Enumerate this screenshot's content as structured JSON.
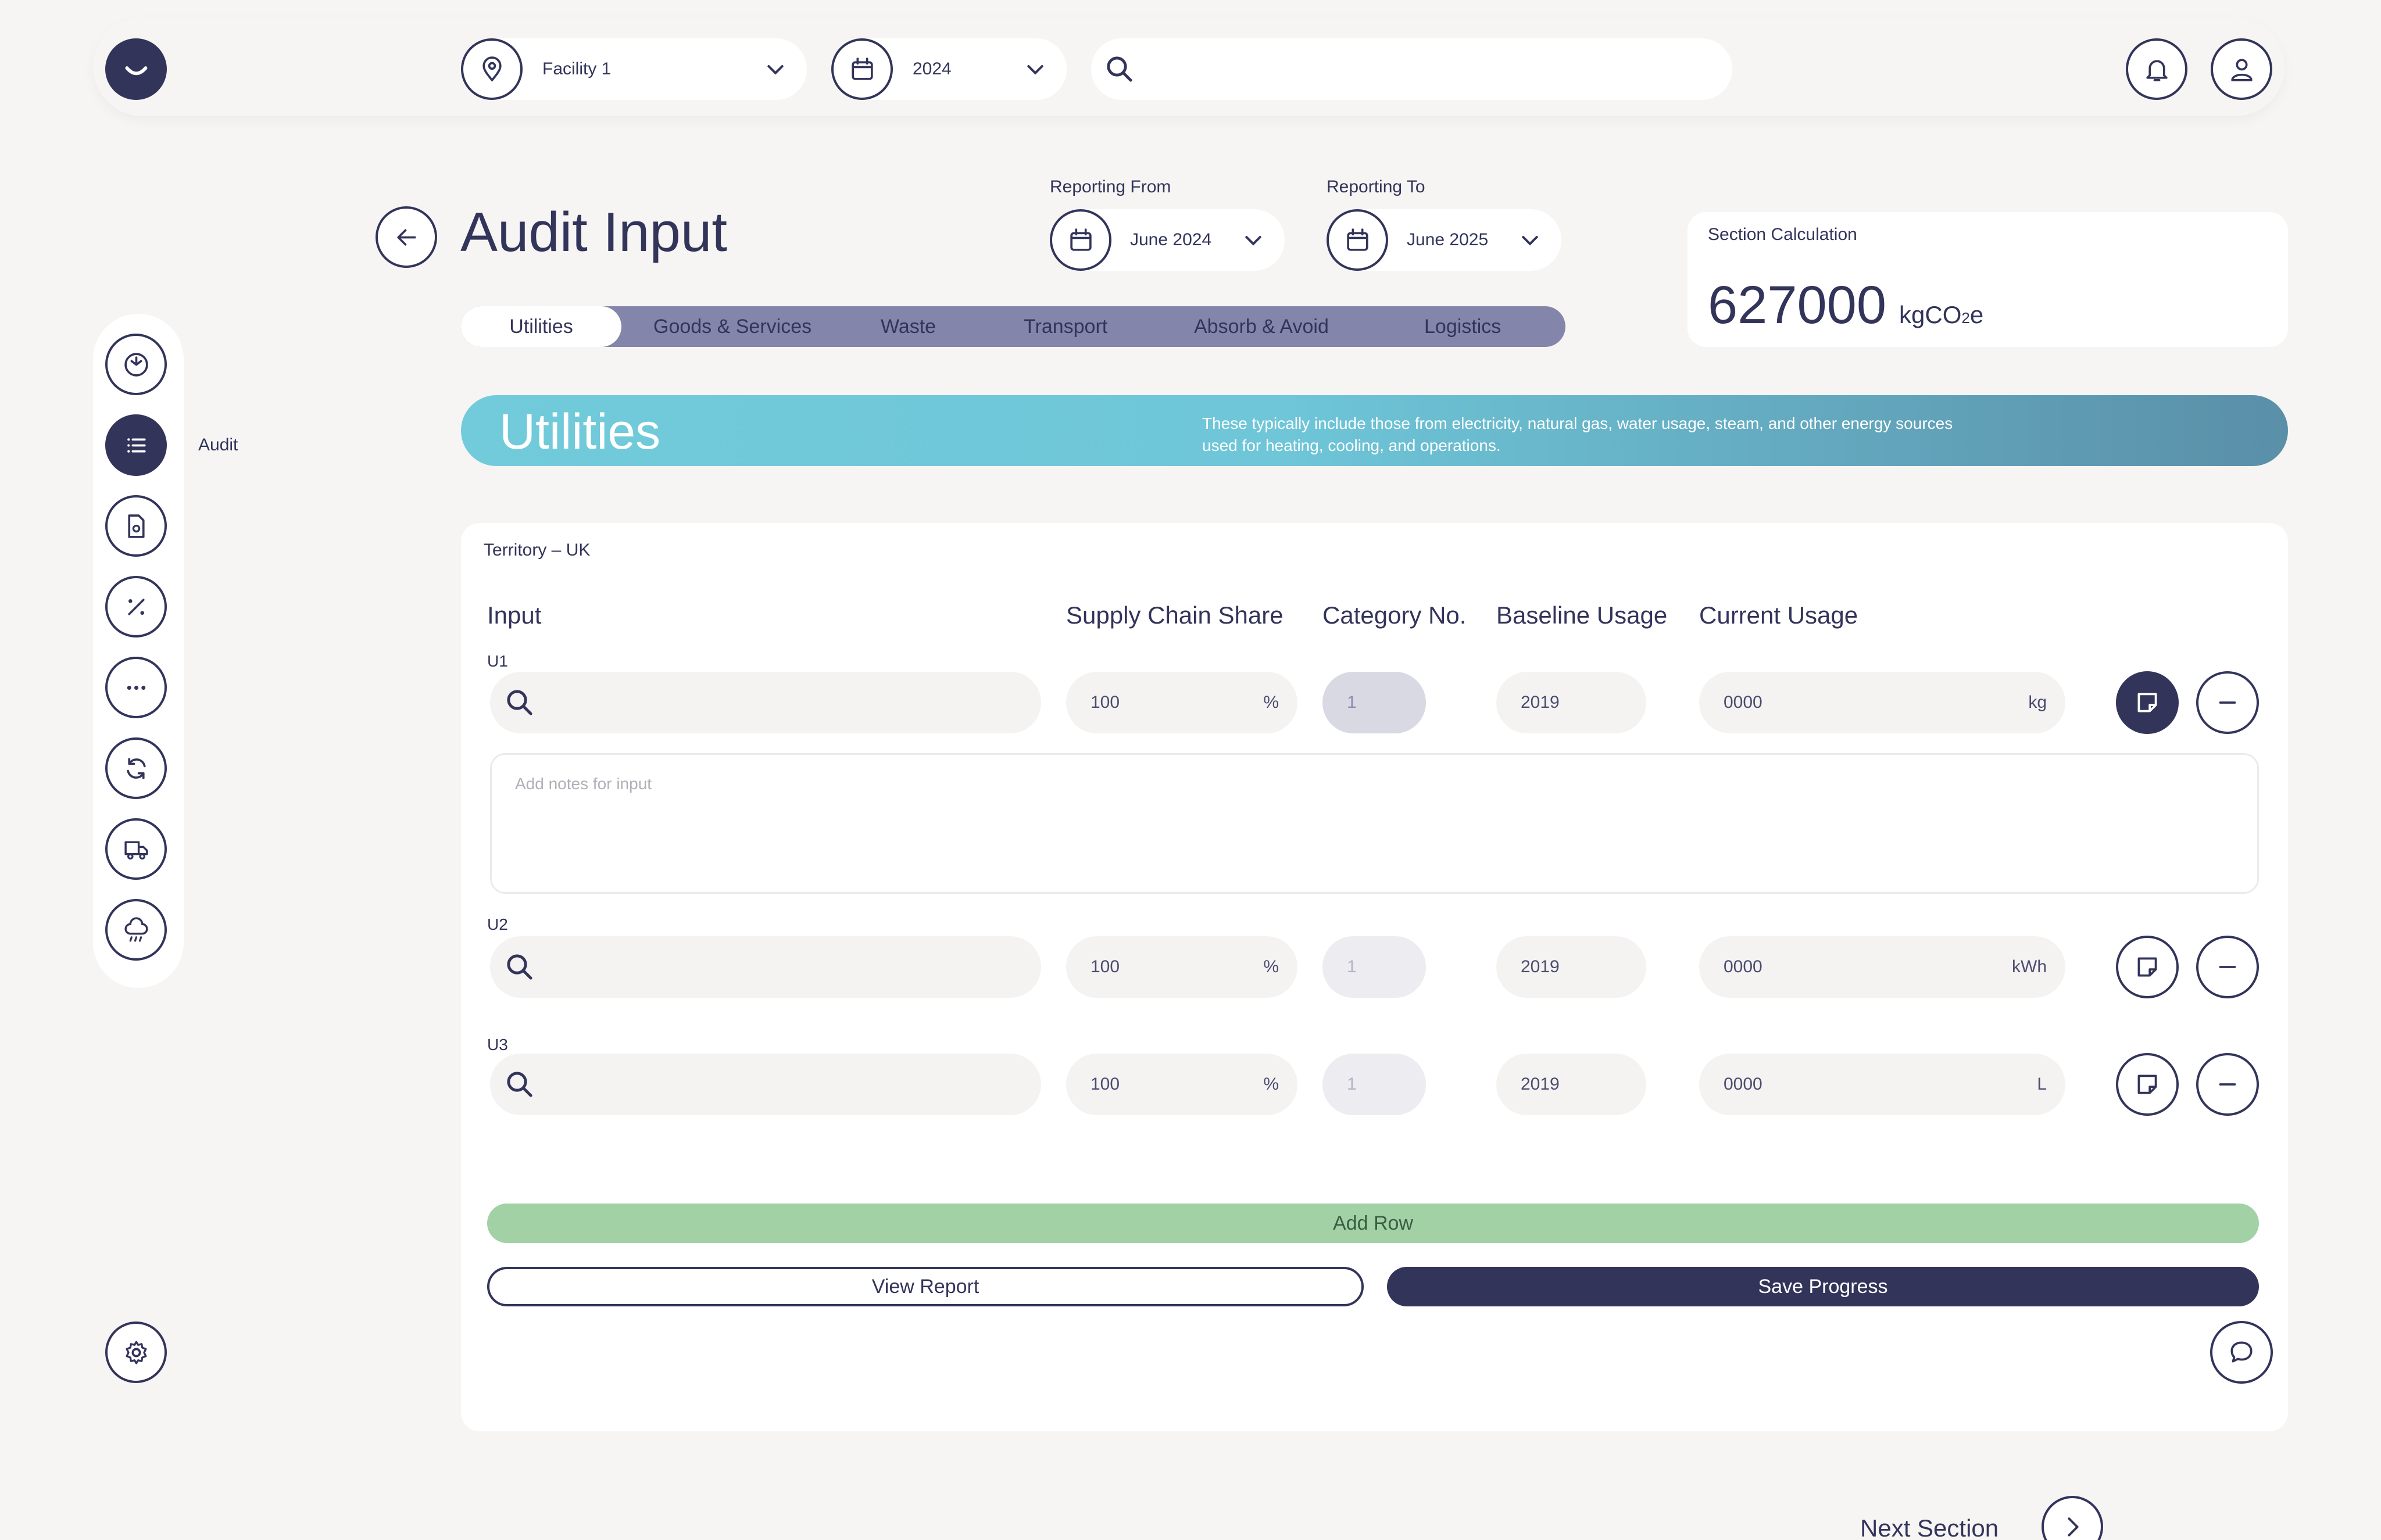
{
  "topbar": {
    "facility_label": "Facility 1",
    "year_label": "2024",
    "search_placeholder": ""
  },
  "page": {
    "title": "Audit Input",
    "reporting_from_label": "Reporting From",
    "reporting_from_value": "June 2024",
    "reporting_to_label": "Reporting To",
    "reporting_to_value": "June 2025"
  },
  "section_calc": {
    "label": "Section Calculation",
    "value": "627000",
    "unit_main": "kgCO",
    "unit_sub": "2",
    "unit_end": "e"
  },
  "tabs": [
    "Utilities",
    "Goods & Services",
    "Waste",
    "Transport",
    "Absorb & Avoid",
    "Logistics"
  ],
  "banner": {
    "title": "Utilities",
    "description_line1": "These typically include those from electricity, natural gas, water usage, steam, and other energy sources",
    "description_line2": "used for heating, cooling, and operations."
  },
  "sidebar": {
    "active_label": "Audit"
  },
  "table": {
    "territory": "Territory – UK",
    "headers": {
      "input": "Input",
      "supply": "Supply Chain Share",
      "category": "Category No.",
      "baseline": "Baseline Usage",
      "current": "Current Usage"
    },
    "rows": [
      {
        "id": "U1",
        "supply": "100",
        "supply_unit": "%",
        "category": "1",
        "baseline": "2019",
        "current": "0000",
        "current_unit": "kg"
      },
      {
        "id": "U2",
        "supply": "100",
        "supply_unit": "%",
        "category": "1",
        "baseline": "2019",
        "current": "0000",
        "current_unit": "kWh"
      },
      {
        "id": "U3",
        "supply": "100",
        "supply_unit": "%",
        "category": "1",
        "baseline": "2019",
        "current": "0000",
        "current_unit": "L"
      }
    ],
    "notes_placeholder": "Add notes for input"
  },
  "actions": {
    "add_row": "Add Row",
    "view_report": "View Report",
    "save_progress": "Save Progress"
  },
  "footer": {
    "next_section": "Next Section"
  },
  "colors": {
    "navy": "#32345a",
    "tab_bar": "#8385aa",
    "banner_start": "#71cbda",
    "banner_end": "#5a8fa8",
    "add_row": "#a2d1a6"
  }
}
